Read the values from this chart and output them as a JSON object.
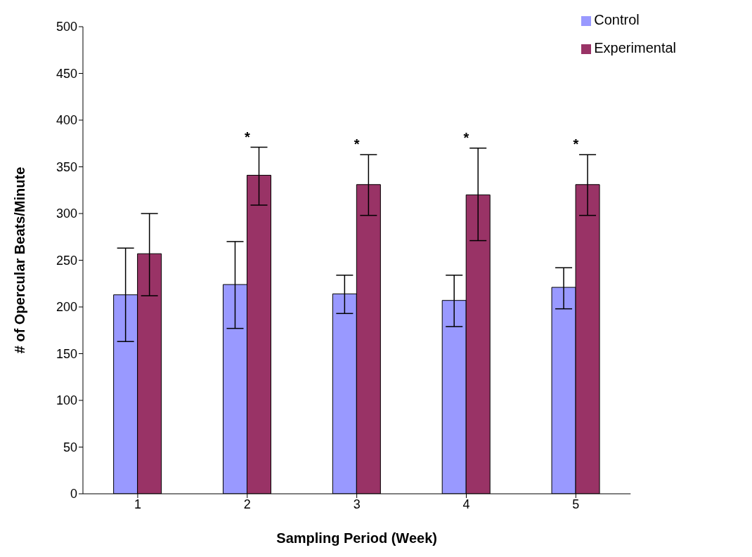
{
  "chart_data": {
    "type": "bar",
    "xlabel": "Sampling Period (Week)",
    "ylabel": "# of Opercular Beats/Minute",
    "categories": [
      "1",
      "2",
      "3",
      "4",
      "5"
    ],
    "series": [
      {
        "name": "Control",
        "color": "#9999ff",
        "values": [
          213,
          224,
          214,
          207,
          221
        ],
        "errors": [
          [
            163,
            263
          ],
          [
            177,
            270
          ],
          [
            193,
            234
          ],
          [
            179,
            234
          ],
          [
            198,
            242
          ]
        ]
      },
      {
        "name": "Experimental",
        "color": "#993366",
        "values": [
          257,
          341,
          331,
          320,
          331
        ],
        "errors": [
          [
            212,
            300
          ],
          [
            309,
            371
          ],
          [
            298,
            363
          ],
          [
            271,
            370
          ],
          [
            298,
            363
          ]
        ]
      }
    ],
    "annotations": [
      {
        "text": "*",
        "x": "2",
        "y": 371
      },
      {
        "text": "*",
        "x": "3",
        "y": 363
      },
      {
        "text": "*",
        "x": "4",
        "y": 370
      },
      {
        "text": "*",
        "x": "5",
        "y": 363
      }
    ],
    "ylim": [
      0,
      500
    ],
    "yticks": [
      0,
      50,
      100,
      150,
      200,
      250,
      300,
      350,
      400,
      450,
      500
    ],
    "grid": false,
    "legend": "top right"
  }
}
